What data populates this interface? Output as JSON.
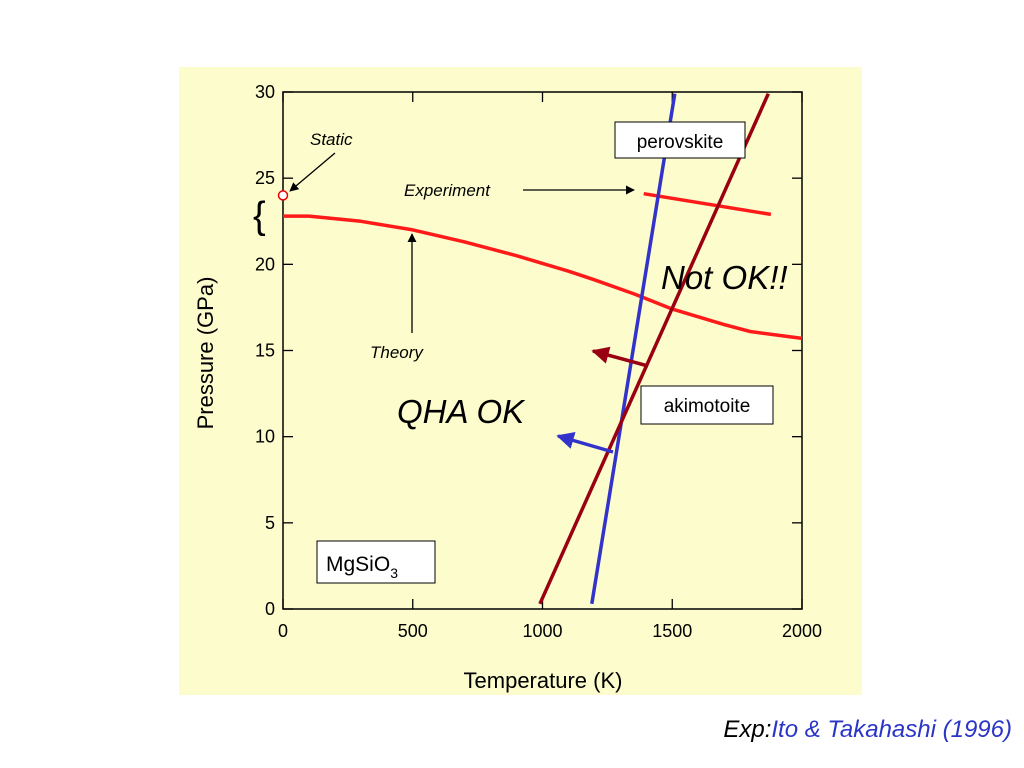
{
  "citation": {
    "prefix": "Exp:",
    "reference": "Ito & Takahashi (1996)"
  },
  "chart_data": {
    "type": "line",
    "xlabel": "Temperature (K)",
    "ylabel": "Pressure (GPa)",
    "xlim": [
      0,
      2000
    ],
    "ylim": [
      0,
      30
    ],
    "x_ticks": [
      0,
      500,
      1000,
      1500,
      2000
    ],
    "y_ticks": [
      0,
      5,
      10,
      15,
      20,
      25,
      30
    ],
    "material": {
      "base": "MgSiO",
      "subscript": "3"
    },
    "series": [
      {
        "name": "Theory",
        "color": "#ff1a1a",
        "points": [
          [
            0,
            22.8
          ],
          [
            100,
            22.8
          ],
          [
            300,
            22.5
          ],
          [
            500,
            22.0
          ],
          [
            700,
            21.3
          ],
          [
            900,
            20.5
          ],
          [
            1100,
            19.6
          ],
          [
            1200,
            19.1
          ],
          [
            1350,
            18.3
          ],
          [
            1500,
            17.4
          ],
          [
            1700,
            16.5
          ],
          [
            1800,
            16.1
          ],
          [
            2000,
            15.7
          ]
        ]
      },
      {
        "name": "Experiment",
        "color": "#ff1a1a",
        "points": [
          [
            1390,
            24.1
          ],
          [
            1880,
            22.9
          ]
        ]
      },
      {
        "name": "perovskite",
        "color": "#3333cc",
        "points": [
          [
            1190,
            0.3
          ],
          [
            1510,
            29.9
          ]
        ]
      },
      {
        "name": "akimotoite",
        "color": "#990011",
        "points": [
          [
            990,
            0.3
          ],
          [
            1870,
            29.9
          ]
        ]
      }
    ],
    "markers": [
      {
        "label": "Static",
        "x": 0,
        "y": 24
      }
    ],
    "annotations": {
      "static": "Static",
      "experiment": "Experiment",
      "theory": "Theory",
      "qha_ok": "QHA OK",
      "not_ok": "Not OK!!",
      "perovskite": "perovskite",
      "akimotoite": "akimotoite"
    }
  }
}
